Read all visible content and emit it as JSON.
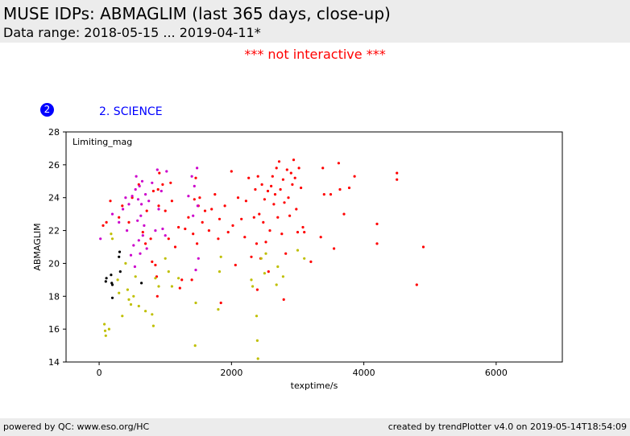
{
  "header": {
    "title": "MUSE IDPs: ABMAGLIM (last 365 days, close-up)",
    "subtitle": "Data range: 2018-05-15 ... 2019-04-11*"
  },
  "notice": "*** not interactive ***",
  "section": {
    "number": "2",
    "label": "2. SCIENCE"
  },
  "footer": {
    "left": "powered by QC: www.eso.org/HC",
    "right": "created by trendPlotter v4.0 on 2019-05-14T18:54:09"
  },
  "colors": {
    "red": "#ff0000",
    "magenta": "#cc00cc",
    "olive": "#bfbf00",
    "black": "#000000",
    "accent": "#0000ff"
  },
  "chart_data": {
    "type": "scatter",
    "title": "",
    "xlabel": "texptime/s",
    "ylabel": "ABMAGLIM",
    "annotation": "Limiting_mag",
    "xlim": [
      -500,
      7000
    ],
    "ylim": [
      14,
      28
    ],
    "xticks": [
      "0",
      "2000",
      "4000",
      "6000"
    ],
    "xtick_values": [
      0,
      2000,
      4000,
      6000
    ],
    "yticks": [
      "14",
      "16",
      "18",
      "20",
      "22",
      "24",
      "26",
      "28"
    ],
    "ytick_values": [
      14,
      16,
      18,
      20,
      22,
      24,
      26,
      28
    ],
    "grid": false,
    "series": [
      {
        "color": "red",
        "points": [
          [
            60,
            22.3
          ],
          [
            110,
            22.5
          ],
          [
            170,
            23.8
          ],
          [
            300,
            22.8
          ],
          [
            350,
            23.5
          ],
          [
            450,
            22.5
          ],
          [
            500,
            24.0
          ],
          [
            600,
            24.8
          ],
          [
            660,
            21.9
          ],
          [
            700,
            21.2
          ],
          [
            720,
            23.2
          ],
          [
            780,
            21.5
          ],
          [
            800,
            20.1
          ],
          [
            820,
            24.4
          ],
          [
            850,
            19.9
          ],
          [
            870,
            19.2
          ],
          [
            880,
            18.0
          ],
          [
            890,
            24.5
          ],
          [
            900,
            23.5
          ],
          [
            910,
            25.5
          ],
          [
            960,
            24.8
          ],
          [
            1000,
            23.2
          ],
          [
            1050,
            21.5
          ],
          [
            1080,
            24.9
          ],
          [
            1100,
            23.8
          ],
          [
            1150,
            21.0
          ],
          [
            1200,
            22.2
          ],
          [
            1220,
            18.5
          ],
          [
            1250,
            19.0
          ],
          [
            1300,
            22.1
          ],
          [
            1350,
            22.8
          ],
          [
            1400,
            19.0
          ],
          [
            1420,
            21.8
          ],
          [
            1440,
            23.9
          ],
          [
            1460,
            25.2
          ],
          [
            1480,
            21.2
          ],
          [
            1500,
            23.5
          ],
          [
            1520,
            24.0
          ],
          [
            1560,
            22.5
          ],
          [
            1600,
            23.2
          ],
          [
            1660,
            22.0
          ],
          [
            1700,
            23.3
          ],
          [
            1750,
            24.2
          ],
          [
            1800,
            21.5
          ],
          [
            1820,
            22.7
          ],
          [
            1840,
            17.6
          ],
          [
            1900,
            23.5
          ],
          [
            1950,
            21.9
          ],
          [
            2000,
            25.6
          ],
          [
            2020,
            22.3
          ],
          [
            2060,
            19.9
          ],
          [
            2100,
            24.0
          ],
          [
            2150,
            22.7
          ],
          [
            2200,
            21.6
          ],
          [
            2220,
            23.8
          ],
          [
            2260,
            25.2
          ],
          [
            2300,
            20.4
          ],
          [
            2340,
            22.8
          ],
          [
            2360,
            24.5
          ],
          [
            2380,
            21.2
          ],
          [
            2390,
            18.4
          ],
          [
            2400,
            25.3
          ],
          [
            2420,
            23.0
          ],
          [
            2440,
            20.3
          ],
          [
            2460,
            24.8
          ],
          [
            2480,
            22.5
          ],
          [
            2500,
            23.9
          ],
          [
            2520,
            21.3
          ],
          [
            2550,
            24.4
          ],
          [
            2560,
            19.5
          ],
          [
            2580,
            22.0
          ],
          [
            2600,
            24.7
          ],
          [
            2620,
            25.3
          ],
          [
            2640,
            23.6
          ],
          [
            2660,
            24.2
          ],
          [
            2680,
            25.8
          ],
          [
            2700,
            22.8
          ],
          [
            2720,
            26.2
          ],
          [
            2740,
            24.5
          ],
          [
            2760,
            21.8
          ],
          [
            2780,
            25.1
          ],
          [
            2790,
            17.8
          ],
          [
            2800,
            23.7
          ],
          [
            2820,
            20.6
          ],
          [
            2840,
            25.7
          ],
          [
            2860,
            24.0
          ],
          [
            2880,
            22.9
          ],
          [
            2900,
            25.5
          ],
          [
            2920,
            24.8
          ],
          [
            2940,
            26.3
          ],
          [
            2960,
            25.2
          ],
          [
            2980,
            23.3
          ],
          [
            3000,
            21.9
          ],
          [
            3020,
            25.8
          ],
          [
            3050,
            24.6
          ],
          [
            3080,
            22.2
          ],
          [
            3100,
            21.9
          ],
          [
            3200,
            20.1
          ],
          [
            3350,
            21.6
          ],
          [
            3380,
            25.8
          ],
          [
            3400,
            24.2
          ],
          [
            3500,
            24.2
          ],
          [
            3550,
            20.9
          ],
          [
            3620,
            26.1
          ],
          [
            3640,
            24.5
          ],
          [
            3700,
            23.0
          ],
          [
            3780,
            24.6
          ],
          [
            3860,
            25.3
          ],
          [
            4200,
            22.4
          ],
          [
            4200,
            21.2
          ],
          [
            4500,
            25.5
          ],
          [
            4500,
            25.1
          ],
          [
            4800,
            18.7
          ],
          [
            4900,
            21.0
          ]
        ]
      },
      {
        "color": "magenta",
        "points": [
          [
            20,
            21.5
          ],
          [
            200,
            23.0
          ],
          [
            300,
            22.5
          ],
          [
            360,
            23.3
          ],
          [
            400,
            24.0
          ],
          [
            420,
            22.0
          ],
          [
            450,
            23.6
          ],
          [
            480,
            20.5
          ],
          [
            500,
            24.1
          ],
          [
            520,
            21.1
          ],
          [
            540,
            19.8
          ],
          [
            550,
            24.5
          ],
          [
            560,
            25.3
          ],
          [
            580,
            22.6
          ],
          [
            590,
            23.9
          ],
          [
            600,
            21.4
          ],
          [
            610,
            24.7
          ],
          [
            620,
            20.6
          ],
          [
            630,
            22.9
          ],
          [
            640,
            23.6
          ],
          [
            650,
            25.0
          ],
          [
            660,
            21.7
          ],
          [
            680,
            22.3
          ],
          [
            700,
            24.2
          ],
          [
            720,
            20.9
          ],
          [
            750,
            23.8
          ],
          [
            800,
            24.9
          ],
          [
            850,
            22.0
          ],
          [
            880,
            25.7
          ],
          [
            900,
            23.3
          ],
          [
            940,
            24.4
          ],
          [
            960,
            22.1
          ],
          [
            1000,
            21.7
          ],
          [
            1020,
            25.6
          ],
          [
            1350,
            24.1
          ],
          [
            1400,
            25.3
          ],
          [
            1420,
            22.9
          ],
          [
            1440,
            24.7
          ],
          [
            1460,
            19.6
          ],
          [
            1480,
            25.8
          ],
          [
            1490,
            23.5
          ],
          [
            1500,
            20.3
          ]
        ]
      },
      {
        "color": "olive",
        "points": [
          [
            80,
            16.3
          ],
          [
            90,
            15.9
          ],
          [
            100,
            15.6
          ],
          [
            150,
            16.0
          ],
          [
            180,
            21.8
          ],
          [
            200,
            21.5
          ],
          [
            280,
            19.0
          ],
          [
            300,
            18.2
          ],
          [
            350,
            16.8
          ],
          [
            400,
            20.0
          ],
          [
            430,
            18.4
          ],
          [
            450,
            17.8
          ],
          [
            480,
            17.5
          ],
          [
            520,
            18.0
          ],
          [
            550,
            19.2
          ],
          [
            600,
            17.4
          ],
          [
            700,
            17.1
          ],
          [
            800,
            16.9
          ],
          [
            820,
            16.2
          ],
          [
            850,
            19.1
          ],
          [
            900,
            18.6
          ],
          [
            1000,
            20.3
          ],
          [
            1050,
            19.5
          ],
          [
            1100,
            18.6
          ],
          [
            1200,
            19.1
          ],
          [
            1450,
            15.0
          ],
          [
            1460,
            17.6
          ],
          [
            1800,
            17.2
          ],
          [
            1820,
            19.5
          ],
          [
            1840,
            20.4
          ],
          [
            2300,
            19.0
          ],
          [
            2320,
            18.6
          ],
          [
            2380,
            16.8
          ],
          [
            2390,
            15.3
          ],
          [
            2400,
            14.2
          ],
          [
            2450,
            20.3
          ],
          [
            2500,
            19.4
          ],
          [
            2520,
            20.6
          ],
          [
            2680,
            18.7
          ],
          [
            2700,
            19.8
          ],
          [
            2780,
            19.2
          ],
          [
            3000,
            20.8
          ],
          [
            3100,
            20.3
          ]
        ]
      },
      {
        "color": "black",
        "points": [
          [
            100,
            18.9
          ],
          [
            110,
            19.1
          ],
          [
            180,
            19.3
          ],
          [
            190,
            18.8
          ],
          [
            200,
            17.9
          ],
          [
            200,
            18.7
          ],
          [
            300,
            20.4
          ],
          [
            310,
            20.7
          ],
          [
            320,
            19.5
          ],
          [
            640,
            18.8
          ]
        ]
      }
    ]
  }
}
